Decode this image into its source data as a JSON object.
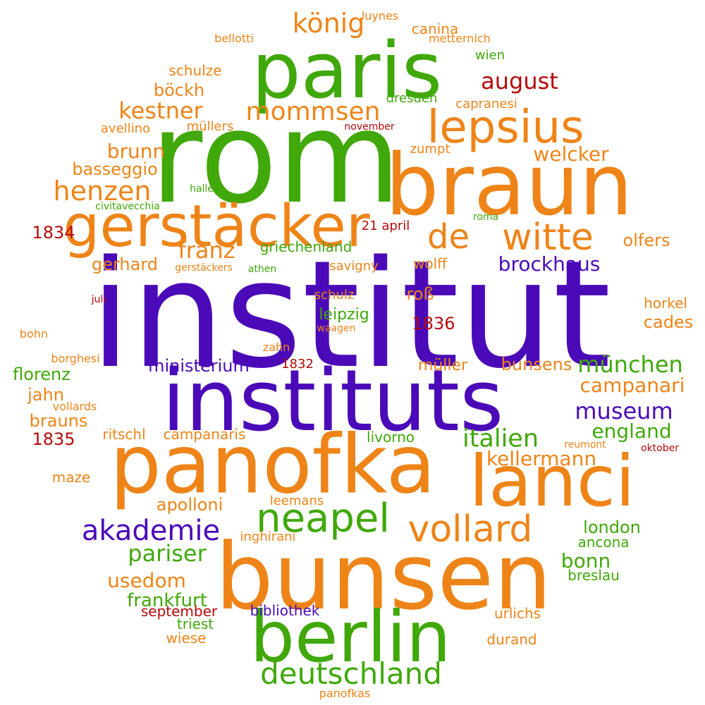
{
  "palette": {
    "purple": "#4b0ab8",
    "orange": "#ee8418",
    "green": "#40a80a",
    "red": "#b50a0a"
  },
  "words": [
    {
      "text": "institut",
      "color": "purple"
    },
    {
      "text": "rom",
      "color": "green"
    },
    {
      "text": "instituts",
      "color": "purple"
    },
    {
      "text": "bunsen",
      "color": "orange"
    },
    {
      "text": "braun",
      "color": "orange"
    },
    {
      "text": "panofka",
      "color": "orange"
    },
    {
      "text": "paris",
      "color": "green"
    },
    {
      "text": "berlin",
      "color": "green"
    },
    {
      "text": "lanci",
      "color": "orange"
    },
    {
      "text": "gerstäcker",
      "color": "orange"
    },
    {
      "text": "lepsius",
      "color": "orange"
    },
    {
      "text": "witte",
      "color": "orange"
    },
    {
      "text": "vollard",
      "color": "orange"
    },
    {
      "text": "neapel",
      "color": "green"
    },
    {
      "text": "deutschland",
      "color": "green"
    },
    {
      "text": "de",
      "color": "orange"
    },
    {
      "text": "akademie",
      "color": "purple"
    },
    {
      "text": "mommsen",
      "color": "orange"
    },
    {
      "text": "henzen",
      "color": "orange"
    },
    {
      "text": "italien",
      "color": "green"
    },
    {
      "text": "franz",
      "color": "orange"
    },
    {
      "text": "könig",
      "color": "orange"
    },
    {
      "text": "kestner",
      "color": "orange"
    },
    {
      "text": "august",
      "color": "red"
    },
    {
      "text": "brockhaus",
      "color": "purple"
    },
    {
      "text": "münchen",
      "color": "green"
    },
    {
      "text": "museum",
      "color": "purple"
    },
    {
      "text": "campanari",
      "color": "orange"
    },
    {
      "text": "england",
      "color": "green"
    },
    {
      "text": "kellermann",
      "color": "orange"
    },
    {
      "text": "pariser",
      "color": "green"
    },
    {
      "text": "usedom",
      "color": "orange"
    },
    {
      "text": "bonn",
      "color": "green"
    },
    {
      "text": "welcker",
      "color": "orange"
    },
    {
      "text": "brunn",
      "color": "orange"
    },
    {
      "text": "basseggio",
      "color": "orange"
    },
    {
      "text": "frankfurt",
      "color": "green"
    },
    {
      "text": "ministerium",
      "color": "purple"
    },
    {
      "text": "apolloni",
      "color": "orange"
    },
    {
      "text": "florenz",
      "color": "green"
    },
    {
      "text": "jahn",
      "color": "orange"
    },
    {
      "text": "brauns",
      "color": "orange"
    },
    {
      "text": "1834",
      "color": "red"
    },
    {
      "text": "1835",
      "color": "red"
    },
    {
      "text": "1836",
      "color": "red"
    },
    {
      "text": "böckh",
      "color": "orange"
    },
    {
      "text": "gerhard",
      "color": "orange"
    },
    {
      "text": "griechenland",
      "color": "green"
    },
    {
      "text": "olfers",
      "color": "orange"
    },
    {
      "text": "london",
      "color": "green"
    },
    {
      "text": "cades",
      "color": "orange"
    },
    {
      "text": "bunsens",
      "color": "orange"
    },
    {
      "text": "müller",
      "color": "orange"
    },
    {
      "text": "roß",
      "color": "orange"
    },
    {
      "text": "leipzig",
      "color": "green"
    },
    {
      "text": "wolff",
      "color": "orange"
    },
    {
      "text": "savigny",
      "color": "orange"
    },
    {
      "text": "schulze",
      "color": "orange"
    },
    {
      "text": "canina",
      "color": "orange"
    },
    {
      "text": "horkel",
      "color": "orange"
    },
    {
      "text": "ancona",
      "color": "green"
    },
    {
      "text": "breslau",
      "color": "green"
    },
    {
      "text": "urlichs",
      "color": "orange"
    },
    {
      "text": "durand",
      "color": "orange"
    },
    {
      "text": "bibliothek",
      "color": "purple"
    },
    {
      "text": "september",
      "color": "red"
    },
    {
      "text": "triest",
      "color": "green"
    },
    {
      "text": "wiese",
      "color": "orange"
    },
    {
      "text": "livorno",
      "color": "green"
    },
    {
      "text": "ritschl",
      "color": "orange"
    },
    {
      "text": "campanaris",
      "color": "orange"
    },
    {
      "text": "maze",
      "color": "orange"
    },
    {
      "text": "leemans",
      "color": "orange"
    },
    {
      "text": "inghirani",
      "color": "orange"
    },
    {
      "text": "21 april",
      "color": "red"
    },
    {
      "text": "1832",
      "color": "red"
    },
    {
      "text": "schulz",
      "color": "orange"
    },
    {
      "text": "capranesi",
      "color": "orange"
    },
    {
      "text": "dresden",
      "color": "green"
    },
    {
      "text": "zumpt",
      "color": "orange"
    },
    {
      "text": "avellino",
      "color": "orange"
    },
    {
      "text": "müllers",
      "color": "orange"
    },
    {
      "text": "wien",
      "color": "green"
    },
    {
      "text": "luynes",
      "color": "orange"
    },
    {
      "text": "bellotti",
      "color": "orange"
    },
    {
      "text": "metternich",
      "color": "orange"
    },
    {
      "text": "november",
      "color": "red"
    },
    {
      "text": "halle",
      "color": "green"
    },
    {
      "text": "civitavecchia",
      "color": "green"
    },
    {
      "text": "roma",
      "color": "green"
    },
    {
      "text": "gerstäckers",
      "color": "orange"
    },
    {
      "text": "athen",
      "color": "green"
    },
    {
      "text": "juli",
      "color": "red"
    },
    {
      "text": "bohn",
      "color": "orange"
    },
    {
      "text": "waagen",
      "color": "orange"
    },
    {
      "text": "zahn",
      "color": "orange"
    },
    {
      "text": "borghesi",
      "color": "orange"
    },
    {
      "text": "vollards",
      "color": "orange"
    },
    {
      "text": "reumont",
      "color": "orange"
    },
    {
      "text": "oktober",
      "color": "red"
    },
    {
      "text": "panofkas",
      "color": "orange"
    }
  ]
}
